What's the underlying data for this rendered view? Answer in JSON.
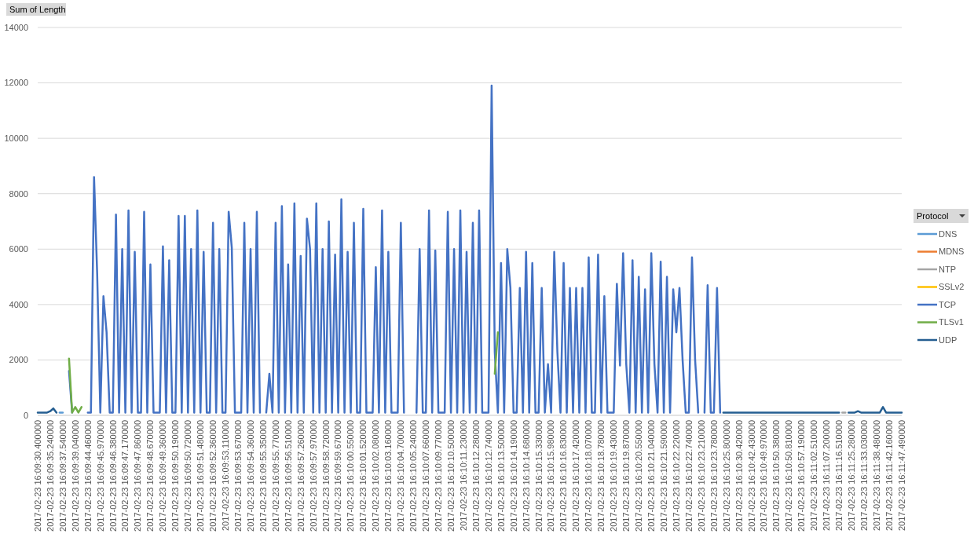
{
  "chart_data": {
    "type": "line",
    "ylabel": "Sum of Length",
    "legend_title": "Protocol",
    "legend": "right",
    "grid": "y",
    "ylim": [
      0,
      14000
    ],
    "yticks": [
      0,
      2000,
      4000,
      6000,
      8000,
      10000,
      12000,
      14000
    ],
    "categories": [
      "2017-02-23 16:09:30.400000",
      null,
      null,
      null,
      "2017-02-23 16:09:35.240000",
      null,
      null,
      null,
      "2017-02-23 16:09:37.540000",
      null,
      null,
      null,
      "2017-02-23 16:09:39.040000",
      null,
      null,
      null,
      "2017-02-23 16:09:44.460000",
      null,
      null,
      null,
      "2017-02-23 16:09:45.970000",
      null,
      null,
      null,
      "2017-02-23 16:09:46.380000",
      null,
      null,
      null,
      "2017-02-23 16:09:47.170000",
      null,
      null,
      null,
      "2017-02-23 16:09:47.860000",
      null,
      null,
      null,
      "2017-02-23 16:09:48.670000",
      null,
      null,
      null,
      "2017-02-23 16:09:49.360000",
      null,
      null,
      null,
      "2017-02-23 16:09:50.190000",
      null,
      null,
      null,
      "2017-02-23 16:09:50.720000",
      null,
      null,
      null,
      "2017-02-23 16:09:51.480000",
      null,
      null,
      null,
      "2017-02-23 16:09:52.360000",
      null,
      null,
      null,
      "2017-02-23 16:09:53.110000",
      null,
      null,
      null,
      "2017-02-23 16:09:53.670000",
      null,
      null,
      null,
      "2017-02-23 16:09:54.360000",
      null,
      null,
      null,
      "2017-02-23 16:09:55.350000",
      null,
      null,
      null,
      "2017-02-23 16:09:55.770000",
      null,
      null,
      null,
      "2017-02-23 16:09:56.510000",
      null,
      null,
      null,
      "2017-02-23 16:09:57.260000",
      null,
      null,
      null,
      "2017-02-23 16:09:57.970000",
      null,
      null,
      null,
      "2017-02-23 16:09:58.720000",
      null,
      null,
      null,
      "2017-02-23 16:09:59.670000",
      null,
      null,
      null,
      "2017-02-23 16:10:00.550000",
      null,
      null,
      null,
      "2017-02-23 16:10:01.520000",
      null,
      null,
      null,
      "2017-02-23 16:10:02.080000",
      null,
      null,
      null,
      "2017-02-23 16:10:03.160000",
      null,
      null,
      null,
      "2017-02-23 16:10:04.700000",
      null,
      null,
      null,
      "2017-02-23 16:10:05.240000",
      null,
      null,
      null,
      "2017-02-23 16:10:07.660000",
      null,
      null,
      null,
      "2017-02-23 16:10:09.770000",
      null,
      null,
      null,
      "2017-02-23 16:10:10.500000",
      null,
      null,
      null,
      "2017-02-23 16:10:11.230000",
      null,
      null,
      null,
      "2017-02-23 16:10:12.280000",
      null,
      null,
      null,
      "2017-02-23 16:10:12.740000",
      null,
      null,
      null,
      "2017-02-23 16:10:13.500000",
      null,
      null,
      null,
      "2017-02-23 16:10:14.190000",
      null,
      null,
      null,
      "2017-02-23 16:10:14.680000",
      null,
      null,
      null,
      "2017-02-23 16:10:15.330000",
      null,
      null,
      null,
      "2017-02-23 16:10:15.980000",
      null,
      null,
      null,
      "2017-02-23 16:10:16.830000",
      null,
      null,
      null,
      "2017-02-23 16:10:17.420000",
      null,
      null,
      null,
      "2017-02-23 16:10:18.070000",
      null,
      null,
      null,
      "2017-02-23 16:10:18.780000",
      null,
      null,
      null,
      "2017-02-23 16:10:19.430000",
      null,
      null,
      null,
      "2017-02-23 16:10:19.870000",
      null,
      null,
      null,
      "2017-02-23 16:10:20.550000",
      null,
      null,
      null,
      "2017-02-23 16:10:21.040000",
      null,
      null,
      null,
      "2017-02-23 16:10:21.590000",
      null,
      null,
      null,
      "2017-02-23 16:10:22.220000",
      null,
      null,
      null,
      "2017-02-23 16:10:22.740000",
      null,
      null,
      null,
      "2017-02-23 16:10:23.210000",
      null,
      null,
      null,
      "2017-02-23 16:10:23.780000",
      null,
      null,
      null,
      "2017-02-23 16:10:25.800000",
      null,
      null,
      null,
      "2017-02-23 16:10:30.420000",
      null,
      null,
      null,
      "2017-02-23 16:10:42.430000",
      null,
      null,
      null,
      "2017-02-23 16:10:49.970000",
      null,
      null,
      null,
      "2017-02-23 16:10:50.380000",
      null,
      null,
      null,
      "2017-02-23 16:10:50.810000",
      null,
      null,
      null,
      "2017-02-23 16:10:57.190000",
      null,
      null,
      null,
      "2017-02-23 16:11:02.510000",
      null,
      null,
      null,
      "2017-02-23 16:11:07.200000",
      null,
      null,
      null,
      "2017-02-23 16:11:16.510000",
      null,
      null,
      null,
      "2017-02-23 16:11:25.280000",
      null,
      null,
      null,
      "2017-02-23 16:11:33.030000",
      null,
      null,
      null,
      "2017-02-23 16:11:38.480000",
      null,
      null,
      null,
      "2017-02-23 16:11:42.160000",
      null,
      null,
      null,
      "2017-02-23 16:11:47.490000"
    ],
    "series": [
      {
        "name": "DNS",
        "color": "#5b9bd5",
        "values": [
          null,
          null,
          null,
          null,
          null,
          null,
          null,
          100,
          100,
          null,
          null,
          null,
          null,
          null,
          null,
          null,
          null,
          null,
          null,
          null,
          null,
          null,
          null,
          null,
          null,
          null,
          null,
          null,
          null,
          null,
          null,
          null,
          null,
          null,
          null,
          null,
          null,
          null,
          null,
          null,
          null,
          null,
          null,
          null,
          null,
          null,
          null,
          null,
          null,
          null,
          null,
          null,
          null,
          null,
          null,
          null,
          null,
          null,
          null,
          null,
          null,
          null,
          null,
          null,
          null,
          null,
          null,
          null,
          null,
          null,
          null,
          null,
          null,
          null,
          null,
          null,
          null,
          null,
          null,
          null,
          null,
          null,
          null,
          null,
          null,
          null,
          null,
          null,
          null,
          null,
          null,
          null,
          null,
          null,
          null,
          null,
          null,
          null,
          null,
          null,
          null,
          null,
          null,
          null,
          null,
          null,
          null,
          null,
          null,
          null,
          null,
          null,
          null,
          null,
          null,
          null,
          null,
          null,
          null,
          null,
          null,
          null,
          null,
          null,
          null,
          null,
          null,
          null,
          null,
          null,
          null,
          null,
          null,
          null,
          null,
          null,
          null,
          null,
          null,
          null,
          null,
          null,
          null,
          null,
          null,
          null,
          null,
          null,
          null,
          null,
          null,
          null,
          null,
          null,
          null,
          null,
          null,
          null,
          null,
          null,
          null,
          null,
          null,
          null,
          null,
          null,
          null,
          null,
          null,
          null,
          null,
          null,
          null,
          null,
          null,
          null,
          null,
          null,
          null,
          null,
          null,
          null,
          null,
          null,
          null,
          null,
          null,
          null,
          null,
          null,
          null,
          null,
          null,
          null,
          null,
          null,
          null,
          null,
          null,
          null,
          null,
          null,
          null,
          null,
          null,
          null,
          null,
          null,
          null,
          null,
          null,
          null,
          null,
          null,
          null,
          null,
          null,
          null,
          null,
          null,
          null,
          null,
          null,
          null,
          null,
          null,
          null,
          null,
          null,
          null,
          null,
          null,
          null,
          null,
          null,
          null,
          null,
          null,
          null,
          null,
          null,
          null,
          null,
          null,
          null,
          null,
          null,
          null,
          null,
          null,
          null,
          null,
          null,
          null,
          null,
          null,
          null,
          null,
          null,
          null,
          null,
          null,
          null,
          null,
          null,
          null,
          null,
          null,
          null,
          null,
          null,
          null,
          null,
          null,
          null,
          null,
          null
        ]
      },
      {
        "name": "MDNS",
        "color": "#ed7d31",
        "values": [
          null,
          null,
          null,
          null,
          null,
          null,
          null,
          null,
          null,
          null,
          null,
          null,
          null,
          null,
          null,
          null,
          null,
          null,
          null,
          null,
          null,
          null,
          null,
          null,
          null,
          null,
          null,
          null,
          null,
          null,
          null,
          null,
          null,
          null,
          null,
          null,
          null,
          null,
          null,
          null,
          null,
          null,
          null,
          null,
          null,
          null,
          null,
          null,
          null,
          null,
          null,
          null,
          null,
          null,
          null,
          null,
          null,
          null,
          null,
          null,
          null,
          null,
          null,
          null,
          null,
          null,
          null,
          null,
          null,
          null,
          null,
          null,
          null,
          null,
          null,
          null,
          null,
          null,
          null,
          null,
          null,
          null,
          null,
          null,
          null,
          null,
          null,
          null,
          null,
          null,
          null,
          null,
          null,
          null,
          null,
          null,
          null,
          null,
          null,
          null,
          null,
          null,
          null,
          null,
          null,
          null,
          null,
          null,
          null,
          null,
          null,
          null,
          null,
          null,
          null,
          null,
          null,
          null,
          null,
          null,
          null,
          null,
          null,
          null,
          null,
          null,
          null,
          null,
          null,
          null,
          null,
          null,
          null,
          null,
          null,
          null,
          null,
          null,
          null,
          null,
          null,
          null,
          null,
          null,
          null,
          null,
          null,
          null,
          null,
          null,
          null,
          null,
          null,
          null,
          null,
          null,
          null,
          null,
          null,
          null,
          null,
          null,
          null,
          null,
          null,
          null,
          null,
          null,
          null,
          null,
          null,
          null,
          null,
          null,
          null,
          null,
          null,
          null,
          null,
          null,
          null,
          null,
          null,
          null,
          null,
          null,
          null,
          null,
          null,
          null,
          null,
          null,
          null,
          null,
          null,
          null,
          null,
          null,
          null,
          null,
          null,
          null,
          null,
          null,
          null,
          null,
          null,
          null,
          null,
          null,
          null,
          null,
          null,
          null,
          null,
          null,
          null,
          null,
          null,
          null,
          null,
          null,
          null,
          null,
          null,
          null,
          null,
          null,
          null,
          null,
          null,
          null,
          null,
          null,
          null,
          null,
          null,
          null,
          null,
          null,
          null,
          null,
          null,
          null,
          null,
          null,
          null,
          null,
          null,
          null,
          null,
          null,
          null,
          null,
          null,
          null,
          null,
          null,
          null,
          null,
          null,
          null,
          null,
          null,
          null,
          null,
          null,
          null,
          null,
          null,
          null,
          null,
          null,
          null,
          null,
          null,
          null
        ]
      },
      {
        "name": "NTP",
        "color": "#a5a5a5",
        "values": [
          null,
          null,
          null,
          null,
          null,
          null,
          null,
          null,
          null,
          null,
          null,
          null,
          null,
          null,
          null,
          null,
          null,
          null,
          null,
          null,
          null,
          null,
          null,
          null,
          null,
          null,
          null,
          null,
          null,
          null,
          null,
          null,
          null,
          null,
          null,
          null,
          null,
          null,
          null,
          null,
          null,
          null,
          null,
          null,
          null,
          null,
          null,
          null,
          null,
          null,
          null,
          null,
          null,
          null,
          null,
          null,
          null,
          null,
          null,
          null,
          null,
          null,
          null,
          null,
          null,
          null,
          null,
          null,
          null,
          null,
          null,
          null,
          null,
          null,
          null,
          null,
          null,
          null,
          null,
          null,
          null,
          null,
          null,
          null,
          null,
          null,
          null,
          null,
          null,
          null,
          null,
          null,
          null,
          null,
          null,
          null,
          null,
          null,
          null,
          null,
          null,
          null,
          null,
          null,
          null,
          null,
          null,
          null,
          null,
          null,
          null,
          null,
          null,
          null,
          null,
          null,
          null,
          null,
          null,
          null,
          null,
          null,
          null,
          null,
          null,
          null,
          null,
          null,
          null,
          null,
          null,
          null,
          null,
          null,
          null,
          null,
          null,
          null,
          null,
          null,
          null,
          null,
          null,
          null,
          null,
          null,
          null,
          null,
          null,
          null,
          null,
          null,
          null,
          null,
          null,
          null,
          null,
          null,
          null,
          null,
          null,
          null,
          null,
          null,
          null,
          null,
          null,
          null,
          null,
          null,
          null,
          null,
          null,
          null,
          null,
          null,
          null,
          null,
          null,
          null,
          null,
          null,
          null,
          null,
          null,
          null,
          null,
          null,
          null,
          null,
          null,
          null,
          null,
          null,
          null,
          null,
          null,
          null,
          null,
          null,
          null,
          null,
          null,
          null,
          null,
          null,
          null,
          null,
          null,
          null,
          null,
          null,
          null,
          null,
          null,
          null,
          null,
          null,
          null,
          null,
          null,
          null,
          null,
          null,
          null,
          null,
          null,
          null,
          null,
          null,
          null,
          null,
          null,
          null,
          null,
          null,
          null,
          null,
          null,
          null,
          null,
          null,
          null,
          null,
          null,
          null,
          null,
          null,
          null,
          null,
          null,
          null,
          null,
          null,
          null,
          null,
          null,
          100,
          100,
          null,
          null,
          null,
          null,
          null,
          null,
          null,
          null,
          null,
          null,
          null,
          null,
          null,
          null,
          null,
          null,
          null,
          null
        ]
      },
      {
        "name": "SSLv2",
        "color": "#ffc000",
        "values": [
          null,
          null,
          null,
          null,
          null,
          null,
          null,
          null,
          null,
          null,
          null,
          null,
          null,
          null,
          null,
          null,
          null,
          null,
          null,
          null,
          null,
          null,
          null,
          null,
          null,
          null,
          null,
          null,
          null,
          null,
          null,
          null,
          null,
          null,
          null,
          null,
          null,
          null,
          null,
          null,
          null,
          null,
          null,
          null,
          null,
          null,
          null,
          null,
          null,
          null,
          null,
          null,
          null,
          null,
          null,
          null,
          null,
          null,
          null,
          null,
          null,
          null,
          null,
          null,
          null,
          null,
          null,
          null,
          null,
          null,
          null,
          null,
          null,
          null,
          null,
          null,
          null,
          null,
          null,
          null,
          null,
          null,
          null,
          null,
          null,
          null,
          null,
          null,
          null,
          null,
          null,
          null,
          null,
          null,
          null,
          null,
          null,
          null,
          null,
          null,
          null,
          null,
          null,
          null,
          null,
          null,
          null,
          null,
          null,
          null,
          null,
          null,
          null,
          null,
          null,
          null,
          null,
          null,
          null,
          null,
          null,
          null,
          null,
          null,
          null,
          null,
          null,
          null,
          null,
          null,
          null,
          null,
          null,
          null,
          null,
          null,
          null,
          null,
          null,
          null,
          null,
          null,
          null,
          null,
          null,
          null,
          null,
          null,
          null,
          null,
          null,
          null,
          null,
          null,
          null,
          null,
          null,
          null,
          null,
          null,
          null,
          null,
          null,
          null,
          null,
          null,
          null,
          null,
          null,
          null,
          null,
          null,
          null,
          null,
          null,
          null,
          null,
          null,
          null,
          null,
          null,
          null,
          null,
          null,
          null,
          null,
          null,
          null,
          null,
          null,
          null,
          null,
          null,
          null,
          null,
          null,
          null,
          null,
          null,
          null,
          null,
          null,
          null,
          null,
          null,
          null,
          null,
          null,
          null,
          null,
          null,
          null,
          null,
          null,
          null,
          null,
          null,
          null,
          null,
          null,
          null,
          null,
          null,
          null,
          null,
          null,
          null,
          null,
          null,
          null,
          null,
          null,
          null,
          null,
          null,
          null,
          null,
          null,
          null,
          null,
          null,
          null,
          null,
          null,
          null,
          null,
          null,
          null,
          null,
          null,
          null,
          null,
          null,
          null,
          null,
          null,
          null,
          null,
          null,
          null,
          null,
          null,
          null,
          null,
          null,
          null,
          null,
          null,
          null,
          null,
          null,
          null,
          null,
          null,
          null,
          null,
          null
        ]
      },
      {
        "name": "TCP",
        "color": "#4472c4",
        "values": [
          null,
          null,
          null,
          null,
          null,
          null,
          null,
          null,
          null,
          null,
          1600,
          100,
          null,
          null,
          null,
          null,
          100,
          100,
          8600,
          5100,
          100,
          4300,
          3000,
          100,
          100,
          7250,
          100,
          6000,
          100,
          7400,
          100,
          5900,
          100,
          100,
          7350,
          100,
          5450,
          100,
          100,
          100,
          6100,
          100,
          5600,
          100,
          100,
          7200,
          100,
          7200,
          100,
          6000,
          100,
          7400,
          100,
          5900,
          100,
          100,
          6950,
          100,
          6000,
          100,
          100,
          7350,
          6050,
          100,
          100,
          100,
          6950,
          100,
          6000,
          100,
          7350,
          100,
          null,
          100,
          1500,
          100,
          6950,
          100,
          7550,
          100,
          5450,
          100,
          7650,
          100,
          5750,
          100,
          7100,
          6000,
          100,
          7650,
          100,
          6000,
          100,
          7000,
          100,
          5800,
          100,
          7800,
          100,
          5900,
          100,
          6950,
          100,
          100,
          7450,
          100,
          100,
          100,
          5350,
          100,
          7400,
          100,
          5900,
          100,
          100,
          100,
          6950,
          100,
          null,
          null,
          null,
          100,
          6000,
          100,
          100,
          7400,
          100,
          5950,
          100,
          100,
          100,
          7350,
          100,
          6000,
          100,
          7400,
          100,
          5900,
          100,
          6950,
          100,
          7400,
          100,
          100,
          100,
          11900,
          2300,
          100,
          5500,
          100,
          6000,
          4600,
          100,
          100,
          4600,
          100,
          5900,
          100,
          5500,
          100,
          100,
          4600,
          100,
          1850,
          100,
          5900,
          2300,
          100,
          5500,
          100,
          4600,
          100,
          4600,
          100,
          4600,
          100,
          5700,
          100,
          100,
          5800,
          100,
          4300,
          100,
          100,
          100,
          4750,
          1800,
          5850,
          1850,
          100,
          5600,
          100,
          5000,
          100,
          4550,
          100,
          5850,
          1850,
          100,
          5550,
          100,
          5000,
          100,
          4550,
          3000,
          4600,
          2000,
          100,
          100,
          5700,
          2000,
          100,
          null,
          100,
          4700,
          100,
          100,
          4600,
          100,
          null,
          null,
          null,
          null,
          null,
          null,
          null,
          null,
          null,
          null,
          null,
          null,
          null,
          null,
          null,
          null,
          null,
          null,
          null,
          null,
          null,
          null,
          null,
          null,
          null,
          null,
          null,
          null,
          null,
          null,
          null,
          null,
          null,
          null,
          null,
          null,
          null,
          null,
          null,
          null,
          null,
          null,
          null,
          null,
          null,
          null,
          null,
          null,
          null,
          null,
          null,
          null,
          null,
          null,
          null,
          null,
          null,
          null
        ]
      },
      {
        "name": "TLSv1",
        "color": "#70ad47",
        "values": [
          null,
          null,
          null,
          null,
          null,
          null,
          null,
          null,
          null,
          null,
          2050,
          100,
          300,
          100,
          300,
          null,
          null,
          null,
          null,
          null,
          null,
          null,
          null,
          null,
          null,
          null,
          null,
          null,
          null,
          null,
          null,
          null,
          null,
          null,
          null,
          null,
          null,
          null,
          null,
          null,
          null,
          null,
          null,
          null,
          null,
          null,
          null,
          null,
          null,
          null,
          null,
          null,
          null,
          null,
          null,
          null,
          null,
          null,
          null,
          null,
          null,
          null,
          null,
          null,
          null,
          null,
          null,
          null,
          null,
          null,
          null,
          null,
          null,
          null,
          null,
          null,
          null,
          null,
          null,
          null,
          null,
          null,
          null,
          null,
          null,
          null,
          null,
          null,
          null,
          null,
          null,
          null,
          null,
          null,
          null,
          null,
          null,
          null,
          null,
          null,
          null,
          null,
          null,
          null,
          null,
          null,
          null,
          null,
          null,
          null,
          null,
          null,
          null,
          null,
          null,
          null,
          null,
          null,
          null,
          null,
          null,
          null,
          null,
          null,
          null,
          null,
          null,
          null,
          null,
          null,
          null,
          null,
          null,
          null,
          null,
          null,
          null,
          null,
          null,
          null,
          null,
          null,
          null,
          null,
          null,
          null,
          1500,
          3000,
          null,
          null,
          null,
          null,
          null,
          null,
          null,
          null,
          null,
          null,
          null,
          null,
          null,
          null,
          null,
          null,
          null,
          null,
          null,
          null,
          null,
          null,
          null,
          null,
          null,
          null,
          null,
          null,
          null,
          null,
          null,
          null,
          null,
          null,
          null,
          null,
          null,
          null,
          null,
          null,
          null,
          null,
          null,
          null,
          null,
          null,
          null,
          null,
          null,
          null,
          null,
          null,
          null,
          null,
          null,
          null,
          null,
          null,
          null,
          null,
          null,
          null,
          null,
          null,
          null,
          null,
          null,
          null,
          null,
          null,
          null,
          null,
          null,
          null,
          null,
          null,
          null,
          null,
          null,
          null,
          null,
          null,
          null,
          null,
          null,
          null,
          null,
          null,
          null,
          null,
          null,
          null,
          null,
          null,
          null,
          null,
          null,
          null,
          null,
          null,
          null,
          null,
          null,
          null,
          null,
          null,
          null,
          null,
          null,
          null,
          null,
          null,
          null,
          null,
          null,
          null,
          null,
          null,
          null,
          null,
          null,
          null,
          null,
          null,
          null,
          null,
          null,
          null,
          null
        ]
      },
      {
        "name": "UDP",
        "color": "#255e91",
        "values": [
          100,
          100,
          100,
          100,
          150,
          250,
          100,
          null,
          null,
          null,
          null,
          null,
          null,
          null,
          null,
          null,
          null,
          null,
          null,
          null,
          null,
          null,
          null,
          null,
          null,
          null,
          null,
          null,
          null,
          null,
          null,
          null,
          null,
          null,
          null,
          null,
          null,
          null,
          null,
          null,
          null,
          null,
          null,
          null,
          null,
          null,
          null,
          null,
          null,
          null,
          null,
          null,
          null,
          null,
          null,
          null,
          null,
          null,
          null,
          null,
          null,
          null,
          null,
          null,
          null,
          null,
          null,
          null,
          null,
          null,
          null,
          null,
          null,
          null,
          null,
          null,
          null,
          null,
          null,
          null,
          null,
          null,
          null,
          null,
          null,
          null,
          null,
          null,
          null,
          null,
          null,
          null,
          null,
          null,
          null,
          null,
          null,
          null,
          null,
          null,
          null,
          null,
          null,
          null,
          null,
          null,
          null,
          null,
          null,
          null,
          null,
          null,
          null,
          null,
          null,
          null,
          null,
          null,
          null,
          null,
          null,
          null,
          null,
          null,
          null,
          null,
          null,
          null,
          null,
          null,
          null,
          null,
          null,
          null,
          null,
          null,
          null,
          null,
          null,
          null,
          null,
          null,
          null,
          null,
          null,
          null,
          null,
          null,
          null,
          null,
          null,
          null,
          null,
          null,
          null,
          null,
          null,
          null,
          null,
          null,
          null,
          null,
          null,
          null,
          null,
          null,
          null,
          null,
          null,
          null,
          null,
          null,
          null,
          null,
          null,
          null,
          null,
          null,
          null,
          null,
          null,
          null,
          null,
          null,
          null,
          null,
          null,
          null,
          null,
          null,
          null,
          null,
          null,
          null,
          null,
          null,
          null,
          null,
          null,
          null,
          null,
          null,
          null,
          null,
          null,
          null,
          null,
          null,
          null,
          null,
          null,
          null,
          null,
          null,
          null,
          null,
          null,
          null,
          null,
          100,
          100,
          100,
          100,
          100,
          100,
          100,
          100,
          100,
          100,
          100,
          100,
          100,
          100,
          100,
          100,
          100,
          100,
          100,
          100,
          100,
          100,
          100,
          100,
          100,
          100,
          100,
          100,
          100,
          100,
          100,
          100,
          100,
          100,
          100,
          100,
          100,
          100,
          null,
          null,
          100,
          100,
          100,
          150,
          100,
          100,
          100,
          100,
          100,
          100,
          100,
          300,
          100,
          100,
          100,
          100,
          100,
          100
        ]
      }
    ]
  }
}
